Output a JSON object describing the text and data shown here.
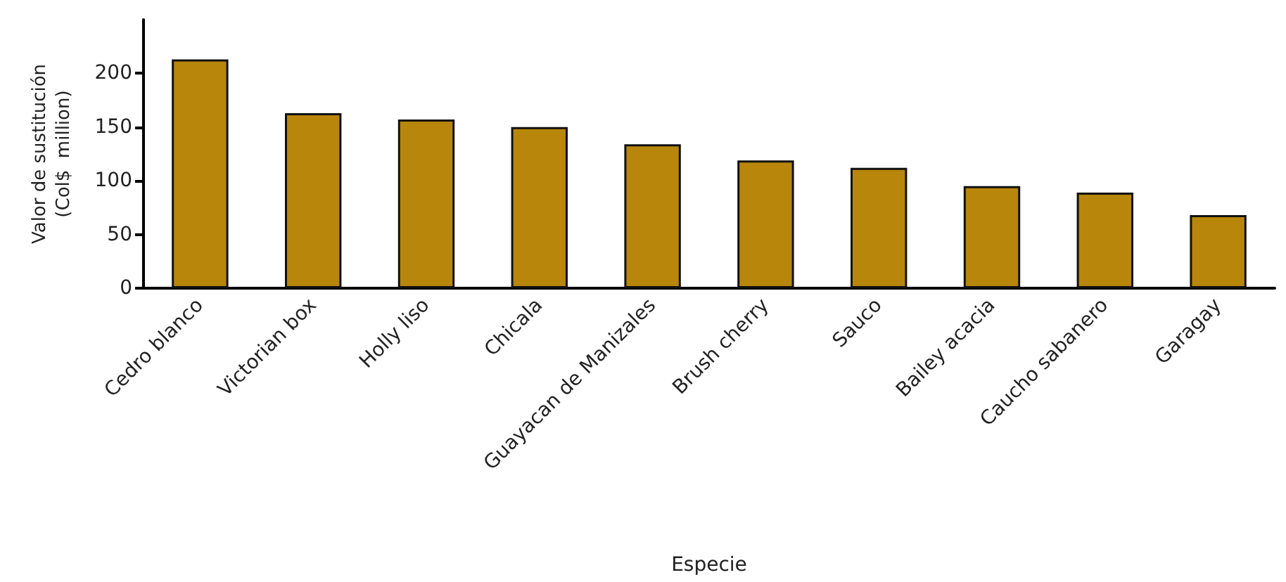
{
  "chart_data": {
    "type": "bar",
    "categories": [
      "Cedro blanco",
      "Victorian box",
      "Holly liso",
      "Chicala",
      "Guayacan de Manizales",
      "Brush cherry",
      "Sauco",
      "Bailey acacia",
      "Caucho sabanero",
      "Garagay"
    ],
    "values": [
      213,
      163,
      157,
      150,
      134,
      119,
      112,
      95,
      89,
      68
    ],
    "color": "#b8860b",
    "xlabel": "Especie",
    "ylabel": "Valor de sustitución\n(Col$  million)",
    "ylim": [
      0,
      250
    ],
    "yticks": [
      0,
      50,
      100,
      150,
      200
    ],
    "grid": false
  }
}
